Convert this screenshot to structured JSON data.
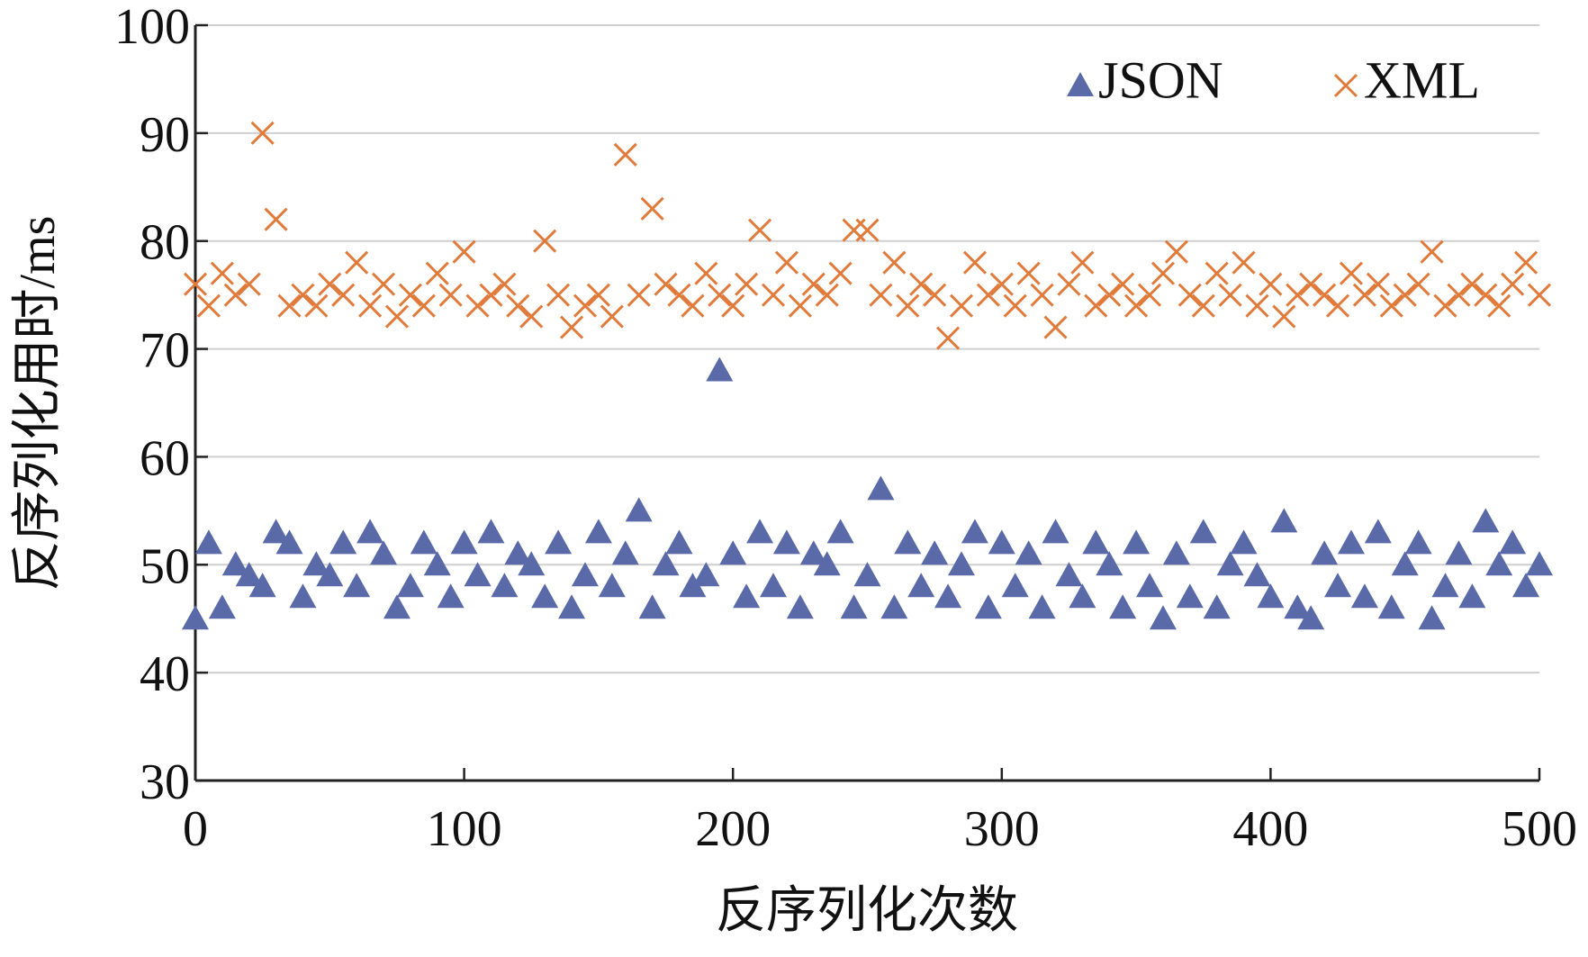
{
  "chart_data": {
    "type": "scatter",
    "xlabel": "反序列化次数",
    "ylabel": "反序列化用时/ms",
    "x": [
      0,
      5,
      10,
      15,
      20,
      25,
      30,
      35,
      40,
      45,
      50,
      55,
      60,
      65,
      70,
      75,
      80,
      85,
      90,
      95,
      100,
      105,
      110,
      115,
      120,
      125,
      130,
      135,
      140,
      145,
      150,
      155,
      160,
      165,
      170,
      175,
      180,
      185,
      190,
      195,
      200,
      205,
      210,
      215,
      220,
      225,
      230,
      235,
      240,
      245,
      250,
      255,
      260,
      265,
      270,
      275,
      280,
      285,
      290,
      295,
      300,
      305,
      310,
      315,
      320,
      325,
      330,
      335,
      340,
      345,
      350,
      355,
      360,
      365,
      370,
      375,
      380,
      385,
      390,
      395,
      400,
      405,
      410,
      415,
      420,
      425,
      430,
      435,
      440,
      445,
      450,
      455,
      460,
      465,
      470,
      475,
      480,
      485,
      490,
      495,
      500
    ],
    "series": [
      {
        "name": "JSON",
        "color": "#5a6aa8",
        "marker": "triangle",
        "values": [
          45,
          52,
          46,
          50,
          49,
          48,
          53,
          52,
          47,
          50,
          49,
          52,
          48,
          53,
          51,
          46,
          48,
          52,
          50,
          47,
          52,
          49,
          53,
          48,
          51,
          50,
          47,
          52,
          46,
          49,
          53,
          48,
          51,
          55,
          46,
          50,
          52,
          48,
          49,
          68,
          51,
          47,
          53,
          48,
          52,
          46,
          51,
          50,
          53,
          46,
          49,
          57,
          46,
          52,
          48,
          51,
          47,
          50,
          53,
          46,
          52,
          48,
          51,
          46,
          53,
          49,
          47,
          52,
          50,
          46,
          52,
          48,
          45,
          51,
          47,
          53,
          46,
          50,
          52,
          49,
          47,
          54,
          46,
          45,
          51,
          48,
          52,
          47,
          53,
          46,
          50,
          52,
          45,
          48,
          51,
          47,
          54,
          50,
          52,
          48,
          50
        ]
      },
      {
        "name": "XML",
        "color": "#e07b3c",
        "marker": "x",
        "values": [
          76,
          74,
          77,
          75,
          76,
          90,
          82,
          74,
          75,
          74,
          76,
          75,
          78,
          74,
          76,
          73,
          75,
          74,
          77,
          75,
          79,
          74,
          75,
          76,
          74,
          73,
          80,
          75,
          72,
          74,
          75,
          73,
          88,
          75,
          83,
          76,
          75,
          74,
          77,
          75,
          74,
          76,
          81,
          75,
          78,
          74,
          76,
          75,
          77,
          81,
          81,
          75,
          78,
          74,
          76,
          75,
          71,
          74,
          78,
          75,
          76,
          74,
          77,
          75,
          72,
          76,
          78,
          74,
          75,
          76,
          74,
          75,
          77,
          79,
          75,
          74,
          77,
          75,
          78,
          74,
          76,
          73,
          75,
          76,
          75,
          74,
          77,
          75,
          76,
          74,
          75,
          76,
          79,
          74,
          75,
          76,
          75,
          74,
          76,
          78,
          75
        ]
      }
    ],
    "xlim": [
      0,
      500
    ],
    "xticks": [
      0,
      100,
      200,
      300,
      400,
      500
    ],
    "ylim": [
      30,
      100
    ],
    "yticks": [
      30,
      40,
      50,
      60,
      70,
      80,
      90,
      100
    ],
    "grid": true,
    "legend": "upper right"
  }
}
